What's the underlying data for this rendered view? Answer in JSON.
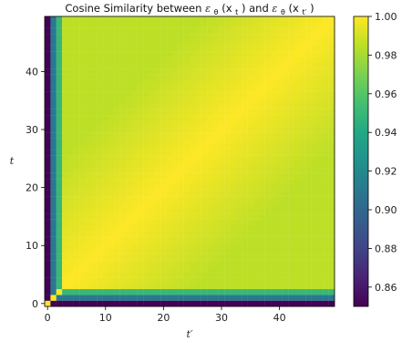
{
  "chart_data": {
    "type": "heatmap",
    "title": "Cosine Similarity between εθ(xt) and εθ(xt′)",
    "title_parts": {
      "prefix": "Cosine Similarity between ",
      "left_sym": "ε",
      "left_sub": "θ",
      "left_arg": "(x",
      "left_arg_sub": "t",
      "close": ")",
      "joiner": " and ",
      "right_sym": "ε",
      "right_sub": "θ",
      "right_arg": "(x",
      "right_arg_sub": "t′",
      "right_close": ")"
    },
    "xlabel": "t′",
    "ylabel": "t",
    "x_range": [
      0,
      49
    ],
    "y_range": [
      0,
      49
    ],
    "x_ticks": [
      "0",
      "10",
      "20",
      "30",
      "40"
    ],
    "y_ticks": [
      "0",
      "10",
      "20",
      "30",
      "40"
    ],
    "y_origin": "lower",
    "colormap": "viridis",
    "colorbar": {
      "range": [
        0.85,
        1.0
      ],
      "ticks": [
        "1.00",
        "0.98",
        "0.96",
        "0.94",
        "0.92",
        "0.90",
        "0.88",
        "0.86"
      ]
    },
    "diagonal_value": 1.0,
    "edge_value": 0.85,
    "row1_col0_value": 0.91,
    "row2_col0_value": 0.95,
    "far_offdiag_value": 0.985,
    "grid": false,
    "legend": "none"
  }
}
